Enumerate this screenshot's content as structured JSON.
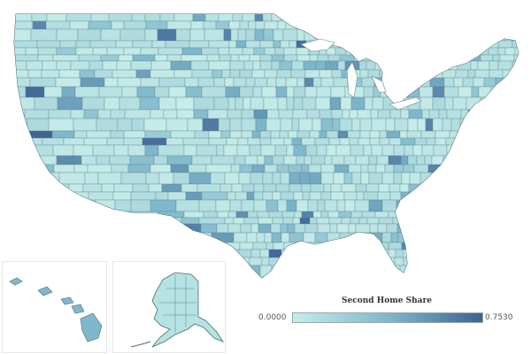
{
  "legend": {
    "title": "Second Home Share",
    "min_label": "0.0000",
    "max_label": "0.7530",
    "min_value": 0.0,
    "max_value": 0.753,
    "color_low": "#c6ece9",
    "color_mid": "#7fb8cc",
    "color_high": "#3d6294"
  },
  "colors": {
    "county_fill_base": "#b5e3e3",
    "county_stroke": "#5f7f86",
    "state_stroke": "#4a6a72",
    "background": "#ffffff",
    "inset_border": "#e6e6e6"
  },
  "regions": {
    "contiguous_us": "contiguous-us",
    "hawaii": "hawaii",
    "alaska": "alaska"
  }
}
